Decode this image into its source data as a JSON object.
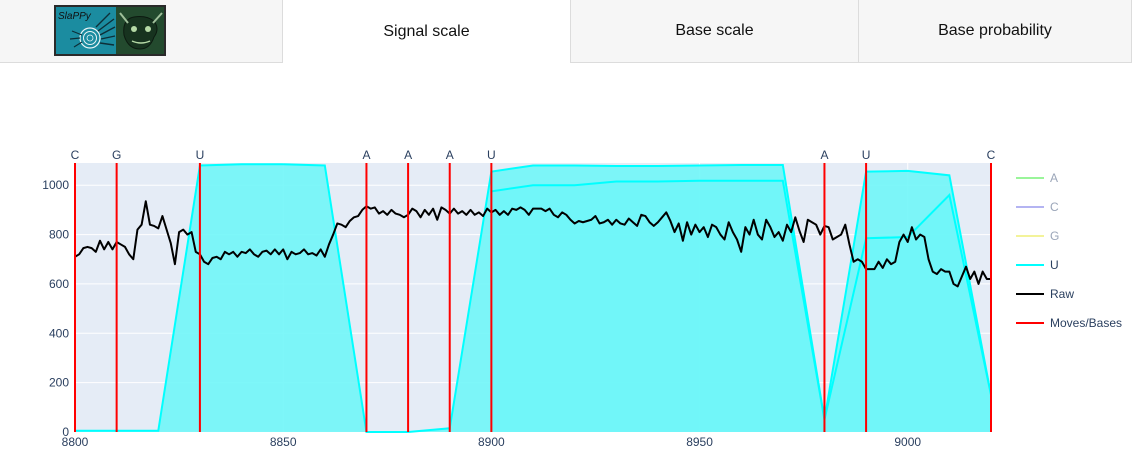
{
  "app": {
    "logo_text": "SlaPPy",
    "tabs": [
      {
        "label": "Signal scale",
        "active": true
      },
      {
        "label": "Base scale",
        "active": false
      },
      {
        "label": "Base probability",
        "active": false
      }
    ]
  },
  "chart_data": {
    "type": "line",
    "xlim": [
      8800,
      9020
    ],
    "ylim": [
      0,
      1090
    ],
    "x_ticks": [
      8800,
      8850,
      8900,
      8950,
      9000
    ],
    "y_ticks": [
      0,
      200,
      400,
      600,
      800,
      1000
    ],
    "grid": true,
    "legend_placement": "right",
    "colors": {
      "plot_bg": "#e5ecf6",
      "raw": "#000000",
      "moves": "#ff0000",
      "U": "#00ffff",
      "U_fill": "#70f6f8",
      "A": "#9af59a",
      "C": "#b4b4f2",
      "G": "#f3f39a"
    },
    "legend": [
      {
        "label": "A",
        "color": "#9af59a",
        "enabled": false
      },
      {
        "label": "C",
        "color": "#b4b4f2",
        "enabled": false
      },
      {
        "label": "G",
        "color": "#f3f39a",
        "enabled": false
      },
      {
        "label": "U",
        "color": "#00ffff",
        "enabled": true
      },
      {
        "label": "Raw",
        "color": "#000000",
        "enabled": true
      },
      {
        "label": "Moves/Bases",
        "color": "#ff0000",
        "enabled": true
      }
    ],
    "bases": [
      {
        "x": 8800,
        "label": "C"
      },
      {
        "x": 8810,
        "label": "G"
      },
      {
        "x": 8830,
        "label": "U"
      },
      {
        "x": 8870,
        "label": "A"
      },
      {
        "x": 8880,
        "label": "A"
      },
      {
        "x": 8890,
        "label": "A"
      },
      {
        "x": 8900,
        "label": "U"
      },
      {
        "x": 8980,
        "label": "A"
      },
      {
        "x": 8990,
        "label": "U"
      },
      {
        "x": 9020,
        "label": "C"
      }
    ],
    "series": [
      {
        "name": "U",
        "kind": "probability_fill",
        "points": [
          [
            8800,
            5
          ],
          [
            8820,
            5
          ],
          [
            8830,
            1080
          ],
          [
            8840,
            1085
          ],
          [
            8850,
            1085
          ],
          [
            8860,
            1080
          ],
          [
            8870,
            0
          ],
          [
            8880,
            0
          ],
          [
            8890,
            15
          ],
          [
            8900,
            1055
          ],
          [
            8910,
            1080
          ],
          [
            8920,
            1080
          ],
          [
            8930,
            1078
          ],
          [
            8940,
            1078
          ],
          [
            8950,
            1080
          ],
          [
            8960,
            1082
          ],
          [
            8970,
            1082
          ],
          [
            8980,
            50
          ],
          [
            8990,
            1055
          ],
          [
            9000,
            1058
          ],
          [
            9010,
            1040
          ],
          [
            9020,
            150
          ]
        ]
      },
      {
        "name": "U",
        "kind": "probability_fill",
        "points": [
          [
            8900,
            975
          ],
          [
            8910,
            1000
          ],
          [
            8920,
            1000
          ],
          [
            8930,
            1015
          ],
          [
            8940,
            1015
          ],
          [
            8950,
            1018
          ],
          [
            8960,
            1018
          ],
          [
            8970,
            1018
          ],
          [
            8980,
            50
          ],
          [
            8990,
            785
          ],
          [
            9000,
            790
          ],
          [
            9010,
            960
          ],
          [
            9020,
            150
          ]
        ]
      },
      {
        "name": "Raw",
        "kind": "signal",
        "points": [
          [
            8800,
            710
          ],
          [
            8801,
            720
          ],
          [
            8802,
            745
          ],
          [
            8803,
            750
          ],
          [
            8804,
            745
          ],
          [
            8805,
            730
          ],
          [
            8806,
            775
          ],
          [
            8807,
            740
          ],
          [
            8808,
            770
          ],
          [
            8809,
            740
          ],
          [
            8810,
            770
          ],
          [
            8811,
            760
          ],
          [
            8812,
            750
          ],
          [
            8813,
            720
          ],
          [
            8814,
            700
          ],
          [
            8815,
            820
          ],
          [
            8816,
            840
          ],
          [
            8817,
            935
          ],
          [
            8818,
            840
          ],
          [
            8819,
            835
          ],
          [
            8820,
            825
          ],
          [
            8821,
            875
          ],
          [
            8822,
            820
          ],
          [
            8823,
            765
          ],
          [
            8824,
            680
          ],
          [
            8825,
            810
          ],
          [
            8826,
            820
          ],
          [
            8827,
            800
          ],
          [
            8828,
            810
          ],
          [
            8829,
            730
          ],
          [
            8830,
            720
          ],
          [
            8831,
            690
          ],
          [
            8832,
            680
          ],
          [
            8833,
            705
          ],
          [
            8834,
            710
          ],
          [
            8835,
            700
          ],
          [
            8836,
            730
          ],
          [
            8837,
            720
          ],
          [
            8838,
            730
          ],
          [
            8839,
            710
          ],
          [
            8840,
            730
          ],
          [
            8841,
            725
          ],
          [
            8842,
            740
          ],
          [
            8843,
            720
          ],
          [
            8844,
            710
          ],
          [
            8845,
            730
          ],
          [
            8846,
            735
          ],
          [
            8847,
            720
          ],
          [
            8848,
            740
          ],
          [
            8849,
            720
          ],
          [
            8850,
            740
          ],
          [
            8851,
            700
          ],
          [
            8852,
            730
          ],
          [
            8853,
            720
          ],
          [
            8854,
            725
          ],
          [
            8855,
            740
          ],
          [
            8856,
            720
          ],
          [
            8857,
            725
          ],
          [
            8858,
            715
          ],
          [
            8859,
            740
          ],
          [
            8860,
            710
          ],
          [
            8861,
            760
          ],
          [
            8862,
            800
          ],
          [
            8863,
            845
          ],
          [
            8864,
            840
          ],
          [
            8865,
            830
          ],
          [
            8866,
            855
          ],
          [
            8867,
            870
          ],
          [
            8868,
            875
          ],
          [
            8869,
            900
          ],
          [
            8870,
            915
          ],
          [
            8871,
            905
          ],
          [
            8872,
            910
          ],
          [
            8873,
            885
          ],
          [
            8874,
            895
          ],
          [
            8875,
            880
          ],
          [
            8876,
            900
          ],
          [
            8877,
            885
          ],
          [
            8878,
            880
          ],
          [
            8879,
            870
          ],
          [
            8880,
            880
          ],
          [
            8881,
            905
          ],
          [
            8882,
            895
          ],
          [
            8883,
            870
          ],
          [
            8884,
            900
          ],
          [
            8885,
            880
          ],
          [
            8886,
            905
          ],
          [
            8887,
            860
          ],
          [
            8888,
            910
          ],
          [
            8889,
            900
          ],
          [
            8890,
            885
          ],
          [
            8891,
            905
          ],
          [
            8892,
            885
          ],
          [
            8893,
            895
          ],
          [
            8894,
            880
          ],
          [
            8895,
            900
          ],
          [
            8896,
            880
          ],
          [
            8897,
            890
          ],
          [
            8898,
            875
          ],
          [
            8899,
            905
          ],
          [
            8900,
            890
          ],
          [
            8901,
            900
          ],
          [
            8902,
            880
          ],
          [
            8903,
            895
          ],
          [
            8904,
            880
          ],
          [
            8905,
            905
          ],
          [
            8906,
            900
          ],
          [
            8907,
            910
          ],
          [
            8908,
            900
          ],
          [
            8909,
            880
          ],
          [
            8910,
            905
          ],
          [
            8911,
            905
          ],
          [
            8912,
            905
          ],
          [
            8913,
            895
          ],
          [
            8914,
            905
          ],
          [
            8915,
            880
          ],
          [
            8916,
            870
          ],
          [
            8917,
            890
          ],
          [
            8918,
            880
          ],
          [
            8919,
            860
          ],
          [
            8920,
            845
          ],
          [
            8921,
            855
          ],
          [
            8922,
            850
          ],
          [
            8923,
            855
          ],
          [
            8924,
            860
          ],
          [
            8925,
            875
          ],
          [
            8926,
            845
          ],
          [
            8927,
            850
          ],
          [
            8928,
            860
          ],
          [
            8929,
            840
          ],
          [
            8930,
            860
          ],
          [
            8931,
            845
          ],
          [
            8932,
            840
          ],
          [
            8933,
            865
          ],
          [
            8934,
            850
          ],
          [
            8935,
            835
          ],
          [
            8936,
            880
          ],
          [
            8937,
            875
          ],
          [
            8938,
            850
          ],
          [
            8939,
            835
          ],
          [
            8940,
            850
          ],
          [
            8941,
            870
          ],
          [
            8942,
            890
          ],
          [
            8943,
            855
          ],
          [
            8944,
            810
          ],
          [
            8945,
            845
          ],
          [
            8946,
            775
          ],
          [
            8947,
            850
          ],
          [
            8948,
            800
          ],
          [
            8949,
            840
          ],
          [
            8950,
            810
          ],
          [
            8951,
            830
          ],
          [
            8952,
            790
          ],
          [
            8953,
            840
          ],
          [
            8954,
            830
          ],
          [
            8955,
            800
          ],
          [
            8956,
            780
          ],
          [
            8957,
            850
          ],
          [
            8958,
            810
          ],
          [
            8959,
            780
          ],
          [
            8960,
            730
          ],
          [
            8961,
            830
          ],
          [
            8962,
            800
          ],
          [
            8963,
            860
          ],
          [
            8964,
            800
          ],
          [
            8965,
            780
          ],
          [
            8966,
            860
          ],
          [
            8967,
            830
          ],
          [
            8968,
            790
          ],
          [
            8969,
            810
          ],
          [
            8970,
            775
          ],
          [
            8971,
            840
          ],
          [
            8972,
            810
          ],
          [
            8973,
            870
          ],
          [
            8974,
            815
          ],
          [
            8975,
            770
          ],
          [
            8976,
            860
          ],
          [
            8977,
            850
          ],
          [
            8978,
            840
          ],
          [
            8979,
            800
          ],
          [
            8980,
            835
          ],
          [
            8981,
            830
          ],
          [
            8982,
            780
          ],
          [
            8983,
            790
          ],
          [
            8984,
            800
          ],
          [
            8985,
            840
          ],
          [
            8986,
            760
          ],
          [
            8987,
            690
          ],
          [
            8988,
            700
          ],
          [
            8989,
            690
          ],
          [
            8990,
            660
          ],
          [
            8991,
            660
          ],
          [
            8992,
            660
          ],
          [
            8993,
            690
          ],
          [
            8994,
            665
          ],
          [
            8995,
            700
          ],
          [
            8996,
            680
          ],
          [
            8997,
            690
          ],
          [
            8998,
            770
          ],
          [
            8999,
            800
          ],
          [
            9000,
            770
          ],
          [
            9001,
            830
          ],
          [
            9002,
            780
          ],
          [
            9003,
            800
          ],
          [
            9004,
            790
          ],
          [
            9005,
            700
          ],
          [
            9006,
            650
          ],
          [
            9007,
            640
          ],
          [
            9008,
            660
          ],
          [
            9009,
            650
          ],
          [
            9010,
            650
          ],
          [
            9011,
            600
          ],
          [
            9012,
            590
          ],
          [
            9013,
            630
          ],
          [
            9014,
            670
          ],
          [
            9015,
            620
          ],
          [
            9016,
            650
          ],
          [
            9017,
            600
          ],
          [
            9018,
            650
          ],
          [
            9019,
            620
          ],
          [
            9020,
            620
          ]
        ]
      }
    ]
  }
}
